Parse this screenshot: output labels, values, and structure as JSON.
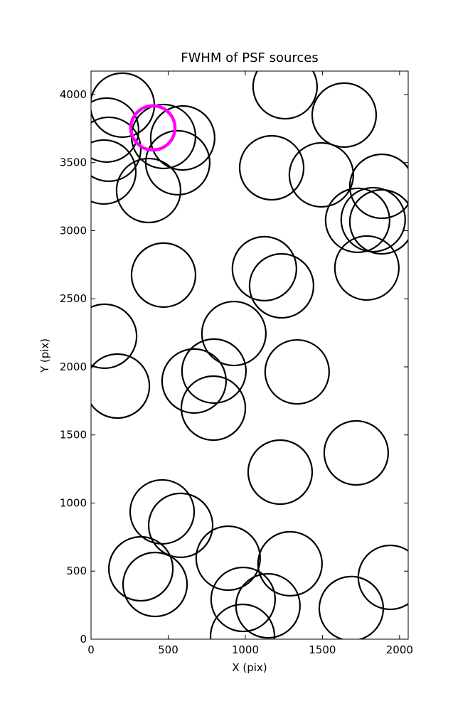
{
  "chart_data": {
    "type": "scatter",
    "title": "FWHM of PSF sources",
    "x_label": "X (pix)",
    "y_label": "Y (pix)",
    "xlim": [
      0,
      2056
    ],
    "ylim": [
      0,
      4172
    ],
    "xticks": [
      0,
      500,
      1000,
      1500,
      2000
    ],
    "yticks": [
      0,
      500,
      1000,
      1500,
      2000,
      2500,
      3000,
      3500,
      4000
    ],
    "series": [
      {
        "color": "#000000",
        "x": [
          203,
          101,
          115,
          83,
          594,
          470,
          562,
          373,
          1258,
          1641,
          1171,
          1493,
          1885,
          1728,
          1829,
          1885,
          1788,
          1124,
          1235,
          470,
          926,
          88,
          171,
          668,
          797,
          793,
          1336,
          1719,
          1226,
          461,
          581,
          323,
          415,
          889,
          1290,
          986,
          1147,
          982,
          1687,
          1940
        ],
        "values": [
          3922,
          3739,
          3598,
          3431,
          3681,
          3692,
          3499,
          3295,
          4057,
          3849,
          3462,
          3410,
          3326,
          3076,
          3081,
          3065,
          2726,
          2721,
          2595,
          2674,
          2245,
          2225,
          1859,
          1896,
          1969,
          1697,
          1963,
          1368,
          1227,
          935,
          836,
          517,
          402,
          595,
          554,
          292,
          245,
          21,
          225,
          454
        ]
      },
      {
        "color": "#ff00ff",
        "x": [
          401
        ],
        "values": [
          3755
        ]
      }
    ]
  }
}
